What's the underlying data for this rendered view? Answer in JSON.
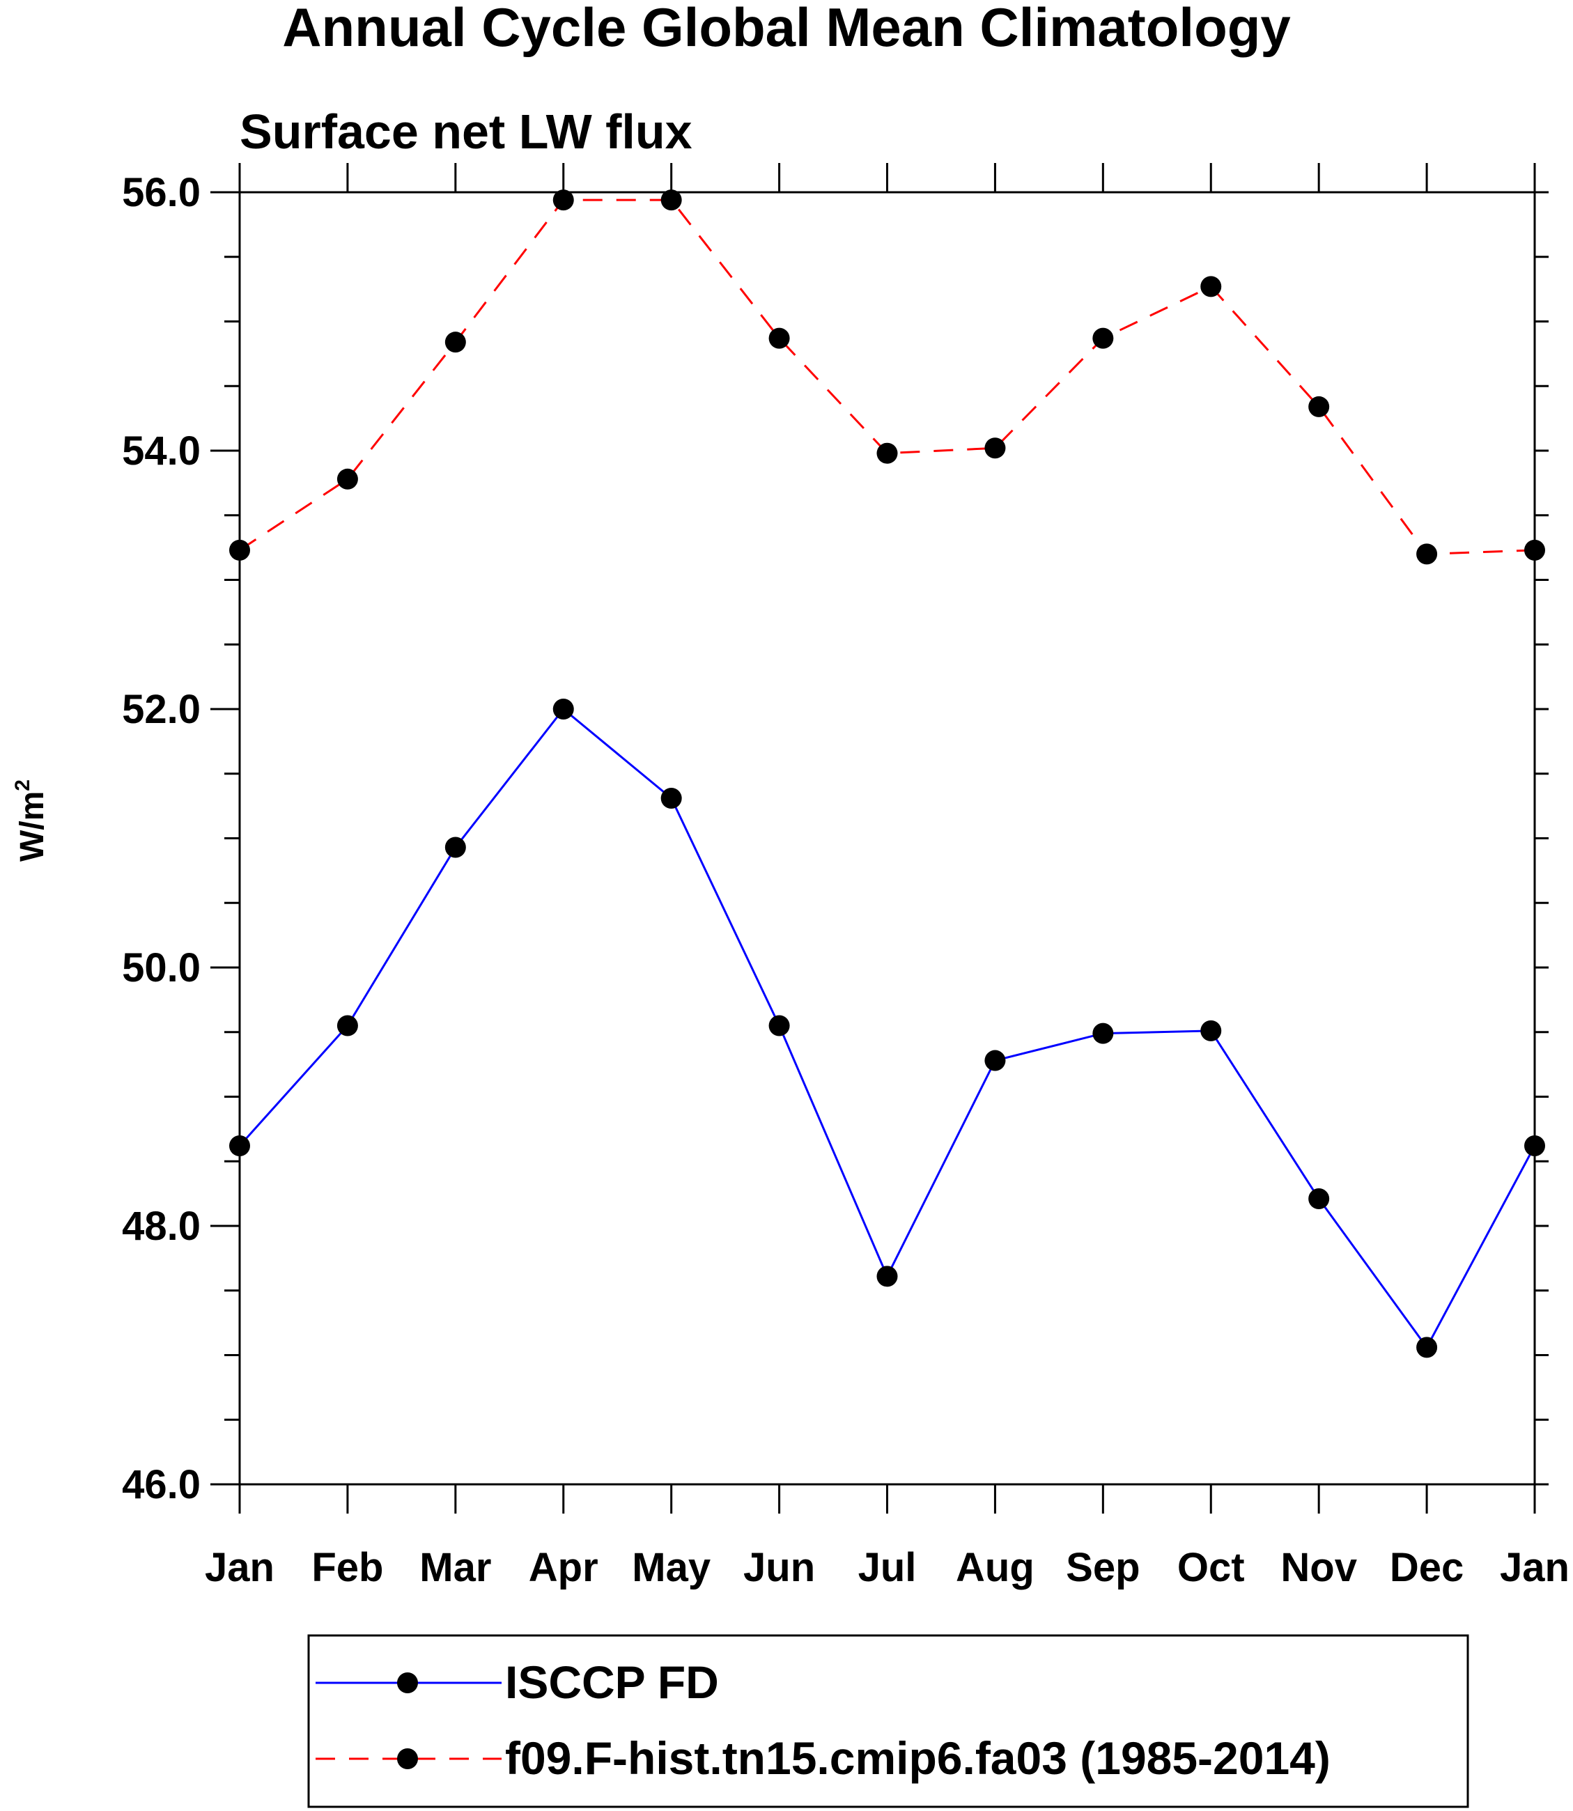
{
  "chart_data": {
    "type": "line",
    "title": "Annual Cycle Global Mean Climatology",
    "subtitle": "Surface net LW flux",
    "xlabel": "",
    "ylabel_main": "W/m",
    "ylabel_sup": "2",
    "categories": [
      "Jan",
      "Feb",
      "Mar",
      "Apr",
      "May",
      "Jun",
      "Jul",
      "Aug",
      "Sep",
      "Oct",
      "Nov",
      "Dec",
      "Jan"
    ],
    "ylim": [
      46.0,
      56.0
    ],
    "yticks": [
      "46.0",
      "48.0",
      "50.0",
      "52.0",
      "54.0",
      "56.0"
    ],
    "grid": false,
    "legend_position": "bottom",
    "series": [
      {
        "name": "ISCCP FD",
        "color": "#0000ff",
        "dash": "solid",
        "values": [
          48.62,
          49.55,
          50.93,
          52.0,
          51.31,
          49.55,
          47.61,
          49.28,
          49.49,
          49.51,
          48.21,
          47.06,
          48.62
        ]
      },
      {
        "name": "f09.F-hist.tn15.cmip6.fa03 (1985-2014)",
        "color": "#ff0000",
        "dash": "dashed",
        "values": [
          53.23,
          53.78,
          54.84,
          55.94,
          55.94,
          54.87,
          53.98,
          54.02,
          54.87,
          55.27,
          54.34,
          53.2,
          53.23
        ]
      }
    ]
  }
}
